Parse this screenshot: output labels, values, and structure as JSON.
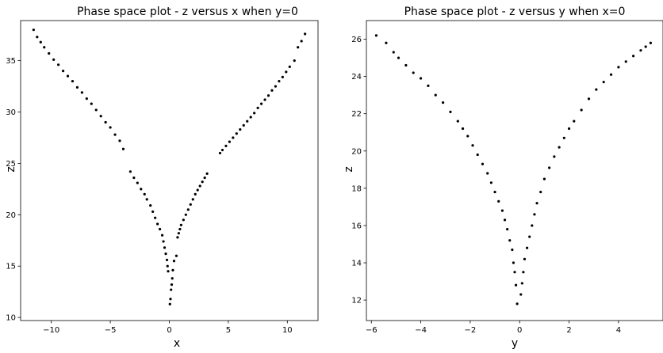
{
  "chart_data": [
    {
      "type": "scatter",
      "title": "Phase space plot - z versus x when y=0",
      "xlabel": "x",
      "ylabel": "z",
      "xlim": [
        -12.6,
        12.6
      ],
      "ylim": [
        9.7,
        38.9
      ],
      "xticks": [
        -10,
        -5,
        0,
        5,
        10
      ],
      "yticks": [
        10,
        15,
        20,
        25,
        30,
        35
      ],
      "grid": false,
      "marker_color": "#000000",
      "series": [
        {
          "x": [
            -11.5,
            -11.2,
            -10.9,
            -10.6,
            -10.2,
            -9.8,
            -9.4,
            -9.0,
            -8.6,
            -8.2,
            -7.8,
            -7.4,
            -7.0,
            -6.6,
            -6.2,
            -5.8,
            -5.4,
            -5.0,
            -4.6,
            -4.2,
            -3.9,
            -3.3,
            -3.0,
            -2.7,
            -2.4,
            -2.1,
            -1.9,
            -1.6,
            -1.4,
            -1.2,
            -1.0,
            -0.8,
            -0.6,
            -0.5,
            -0.4,
            -0.3,
            -0.2,
            -0.15,
            -0.1,
            0.05,
            0.1,
            0.15,
            0.2,
            0.25,
            0.3,
            0.4,
            0.6,
            0.7,
            0.8,
            0.9,
            1.0,
            1.2,
            1.4,
            1.6,
            1.8,
            2.0,
            2.2,
            2.4,
            2.6,
            2.8,
            3.0,
            3.2,
            4.3,
            4.5,
            4.8,
            5.1,
            5.4,
            5.7,
            6.0,
            6.3,
            6.6,
            6.9,
            7.2,
            7.5,
            7.8,
            8.1,
            8.4,
            8.7,
            9.0,
            9.3,
            9.6,
            9.9,
            10.2,
            10.6,
            10.9,
            11.2,
            11.5
          ],
          "y": [
            38.0,
            37.3,
            36.8,
            36.3,
            35.7,
            35.1,
            34.6,
            34.0,
            33.5,
            33.0,
            32.4,
            31.9,
            31.3,
            30.8,
            30.2,
            29.6,
            29.0,
            28.5,
            27.8,
            27.2,
            26.4,
            24.2,
            23.6,
            23.1,
            22.5,
            22.0,
            21.5,
            20.9,
            20.3,
            19.7,
            19.1,
            18.6,
            18.0,
            17.4,
            16.8,
            16.2,
            15.6,
            15.0,
            14.5,
            11.3,
            11.8,
            12.7,
            13.2,
            13.8,
            14.6,
            15.5,
            16.0,
            17.8,
            18.2,
            18.6,
            19.0,
            19.5,
            20.0,
            20.5,
            21.0,
            21.5,
            22.0,
            22.4,
            22.8,
            23.2,
            23.6,
            24.0,
            26.0,
            26.3,
            26.7,
            27.1,
            27.5,
            27.9,
            28.3,
            28.7,
            29.1,
            29.5,
            29.9,
            30.4,
            30.8,
            31.2,
            31.6,
            32.1,
            32.5,
            33.0,
            33.4,
            33.9,
            34.4,
            35.0,
            36.3,
            36.9,
            37.6
          ]
        }
      ]
    },
    {
      "type": "scatter",
      "title": "Phase space plot - z versus y when x=0",
      "xlabel": "y",
      "ylabel": "z",
      "xlim": [
        -6.2,
        5.8
      ],
      "ylim": [
        10.9,
        27.0
      ],
      "xticks": [
        -6,
        -4,
        -2,
        0,
        2,
        4
      ],
      "yticks": [
        12,
        14,
        16,
        18,
        20,
        22,
        24,
        26
      ],
      "grid": false,
      "marker_color": "#000000",
      "series": [
        {
          "x": [
            -5.8,
            -5.4,
            -5.1,
            -4.9,
            -4.6,
            -4.3,
            -4.0,
            -3.7,
            -3.4,
            -3.1,
            -2.8,
            -2.5,
            -2.3,
            -2.1,
            -1.9,
            -1.7,
            -1.5,
            -1.3,
            -1.15,
            -1.0,
            -0.85,
            -0.7,
            -0.6,
            -0.5,
            -0.4,
            -0.3,
            -0.25,
            -0.2,
            -0.15,
            -0.1,
            0.05,
            0.1,
            0.15,
            0.2,
            0.3,
            0.4,
            0.5,
            0.6,
            0.7,
            0.85,
            1.0,
            1.2,
            1.4,
            1.6,
            1.8,
            2.0,
            2.2,
            2.5,
            2.8,
            3.1,
            3.4,
            3.7,
            4.0,
            4.3,
            4.6,
            4.9,
            5.1,
            5.3
          ],
          "y": [
            26.2,
            25.8,
            25.3,
            25.0,
            24.6,
            24.2,
            23.9,
            23.5,
            23.0,
            22.6,
            22.1,
            21.6,
            21.2,
            20.8,
            20.3,
            19.8,
            19.3,
            18.8,
            18.3,
            17.8,
            17.3,
            16.8,
            16.3,
            15.8,
            15.2,
            14.7,
            14.0,
            13.5,
            12.8,
            11.8,
            12.3,
            12.9,
            13.5,
            14.2,
            14.8,
            15.4,
            16.0,
            16.6,
            17.2,
            17.8,
            18.5,
            19.1,
            19.7,
            20.2,
            20.7,
            21.2,
            21.6,
            22.2,
            22.8,
            23.3,
            23.7,
            24.1,
            24.5,
            24.8,
            25.1,
            25.4,
            25.6,
            25.8
          ]
        }
      ]
    }
  ]
}
